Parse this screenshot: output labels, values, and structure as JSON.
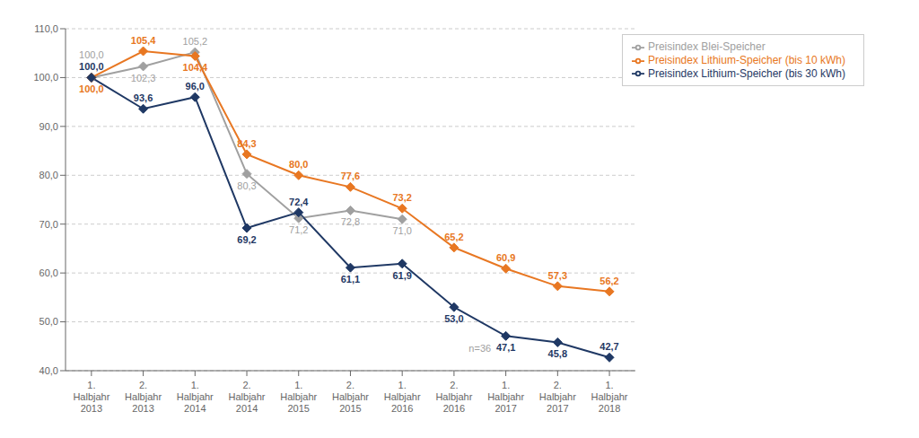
{
  "chart_data": {
    "type": "line",
    "categories": [
      "1.\nHalbjahr\n2013",
      "2.\nHalbjahr\n2013",
      "1.\nHalbjahr\n2014",
      "2.\nHalbjahr\n2014",
      "1.\nHalbjahr\n2015",
      "2.\nHalbjahr\n2015",
      "1.\nHalbjahr\n2016",
      "2.\nHalbjahr\n2016",
      "1.\nHalbjahr\n2017",
      "2.\nHalbjahr\n2017",
      "1.\nHalbjahr\n2018"
    ],
    "series": [
      {
        "name": "Preisindex Blei-Speicher",
        "color": "#A0A0A0",
        "values": [
          100.0,
          102.3,
          105.2,
          80.3,
          71.2,
          72.8,
          71.0,
          null,
          null,
          null,
          null
        ],
        "value_labels": [
          "100,0",
          "102,3",
          "105,2",
          "80,3",
          "71,2",
          "72,8",
          "71,0",
          null,
          null,
          null,
          null
        ]
      },
      {
        "name": "Preisindex Lithium-Speicher (bis 10 kWh)",
        "color": "#E87722",
        "values": [
          100.0,
          105.4,
          104.4,
          84.3,
          80.0,
          77.6,
          73.2,
          65.2,
          60.9,
          57.3,
          56.2
        ],
        "value_labels": [
          "100,0",
          "105,4",
          "104,4",
          "84,3",
          "80,0",
          "77,6",
          "73,2",
          "65,2",
          "60,9",
          "57,3",
          "56,2"
        ]
      },
      {
        "name": "Preisindex Lithium-Speicher (bis 30 kWh)",
        "color": "#1F3864",
        "values": [
          100.0,
          93.6,
          96.0,
          69.2,
          72.4,
          61.1,
          61.9,
          53.0,
          47.1,
          45.8,
          42.7
        ],
        "value_labels": [
          "100,0",
          "93,6",
          "96,0",
          "69,2",
          "72,4",
          "61,1",
          "61,9",
          "53,0",
          "47,1",
          "45,8",
          "42,7"
        ]
      }
    ],
    "ylim": [
      40.0,
      110.0
    ],
    "yticks": [
      {
        "value": 40.0,
        "label": "40,0"
      },
      {
        "value": 50.0,
        "label": "50,0"
      },
      {
        "value": 60.0,
        "label": "60,0"
      },
      {
        "value": 70.0,
        "label": "70,0"
      },
      {
        "value": 80.0,
        "label": "80,0"
      },
      {
        "value": 90.0,
        "label": "90,0"
      },
      {
        "value": 100.0,
        "label": "100,0"
      },
      {
        "value": 110.0,
        "label": "110,0"
      }
    ],
    "grid": true,
    "legend": "upper right",
    "marker": "diamond",
    "data_labels": true,
    "annotations": [
      {
        "text": "n=36",
        "x": 7.5,
        "y": 43.5
      }
    ]
  }
}
